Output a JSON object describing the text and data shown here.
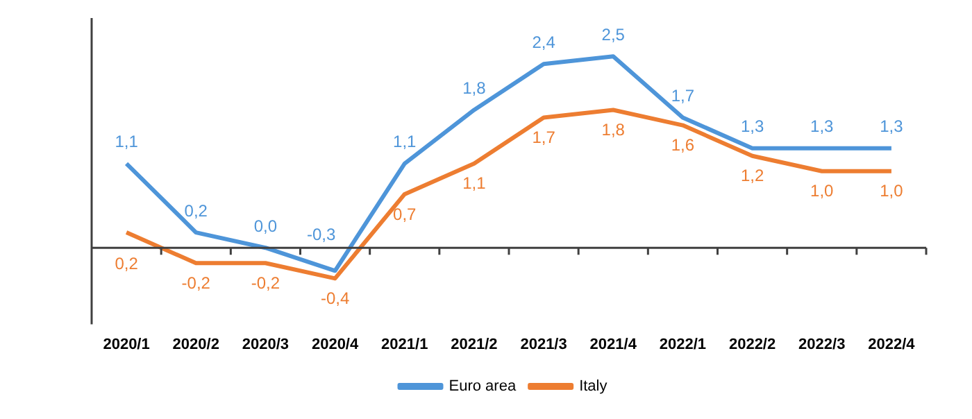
{
  "chart_data": {
    "type": "line",
    "categories": [
      "2020/1",
      "2020/2",
      "2020/3",
      "2020/4",
      "2021/1",
      "2021/2",
      "2021/3",
      "2021/4",
      "2022/1",
      "2022/2",
      "2022/3",
      "2022/4"
    ],
    "series": [
      {
        "name": "Euro area",
        "color": "#4e95d9",
        "values": [
          1.1,
          0.2,
          0.0,
          -0.3,
          1.1,
          1.8,
          2.4,
          2.5,
          1.7,
          1.3,
          1.3,
          1.3
        ],
        "value_labels": [
          "1,1",
          "0,2",
          "0,0",
          "-0,3",
          "1,1",
          "1,8",
          "2,4",
          "2,5",
          "1,7",
          "1,3",
          "1,3",
          "1,3"
        ]
      },
      {
        "name": "Italy",
        "color": "#ed7d31",
        "values": [
          0.2,
          -0.2,
          -0.2,
          -0.4,
          0.7,
          1.1,
          1.7,
          1.8,
          1.6,
          1.2,
          1.0,
          1.0
        ],
        "value_labels": [
          "0,2",
          "-0,2",
          "-0,2",
          "-0,4",
          "0,7",
          "1,1",
          "1,7",
          "1,8",
          "1,6",
          "1,2",
          "1,0",
          "1,0"
        ]
      }
    ],
    "relative": false,
    "tick_labels": "x",
    "legend": "bottom",
    "grid": false,
    "marker": "none",
    "line_style": "solid"
  }
}
